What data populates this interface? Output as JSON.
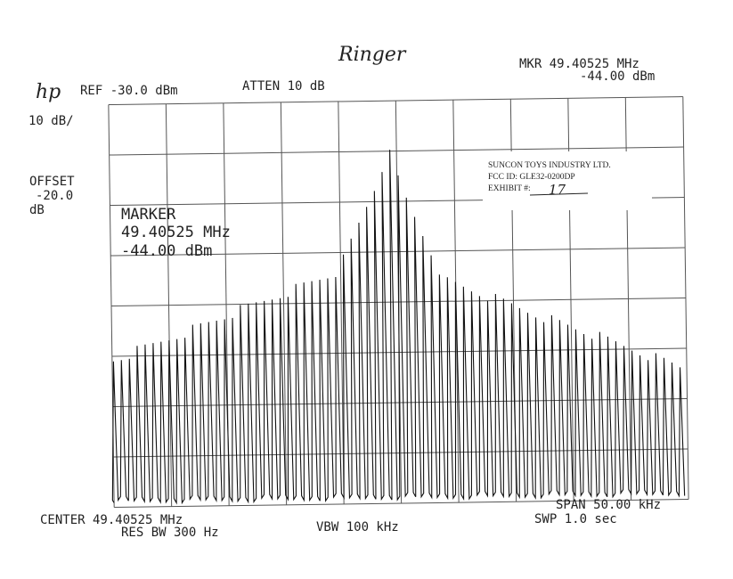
{
  "handwritten_title": "Ringer",
  "header": {
    "logo": "hp",
    "ref": "REF -30.0 dBm",
    "atten": "ATTEN 10 dB",
    "marker_freq": "MKR 49.40525 MHz",
    "marker_level": "-44.00 dBm"
  },
  "left": {
    "scale": "10 dB/",
    "offset_label": "OFFSET",
    "offset_value": "-20.0",
    "offset_unit": "dB"
  },
  "marker_box": {
    "label": "MARKER",
    "freq": "49.40525 MHz",
    "level": "-44.00 dBm"
  },
  "stamp": {
    "company": "SUNCON TOYS INDUSTRY LTD.",
    "fcc_id": "FCC ID:  GLE32-0200DP",
    "exhibit_label": "EXHIBIT #:",
    "exhibit_number": "17"
  },
  "footer": {
    "center": "CENTER 49.40525 MHz",
    "res_bw": "RES BW 300 Hz",
    "vbw": "VBW 100 kHz",
    "span": "SPAN 50.00 kHz",
    "sweep": "SWP 1.0 sec"
  }
}
